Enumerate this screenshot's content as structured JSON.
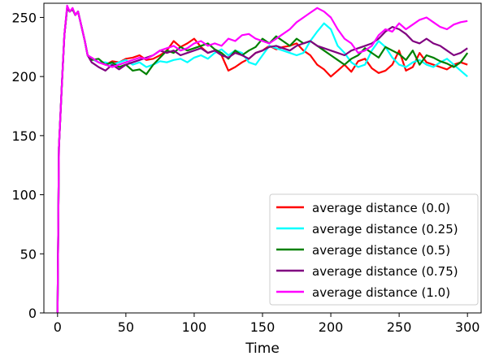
{
  "chart_data": {
    "type": "line",
    "title": "",
    "xlabel": "Time",
    "ylabel": "",
    "xlim": [
      -10,
      310
    ],
    "ylim": [
      0,
      262
    ],
    "xticks": [
      0,
      50,
      100,
      150,
      200,
      250,
      300
    ],
    "yticks": [
      0,
      50,
      100,
      150,
      200,
      250
    ],
    "grid": false,
    "legend_position": "lower-right",
    "series": [
      {
        "name": "average distance (0.0)",
        "color": "#ff0000",
        "x": [
          0,
          1,
          3,
          5,
          7,
          9,
          11,
          13,
          15,
          17,
          20,
          22,
          25,
          30,
          35,
          40,
          45,
          50,
          55,
          60,
          65,
          70,
          75,
          80,
          85,
          90,
          95,
          100,
          105,
          110,
          115,
          120,
          125,
          130,
          135,
          140,
          145,
          150,
          155,
          160,
          165,
          170,
          175,
          180,
          185,
          190,
          195,
          200,
          205,
          210,
          215,
          220,
          225,
          230,
          235,
          240,
          245,
          250,
          255,
          260,
          265,
          270,
          275,
          280,
          285,
          290,
          295,
          300
        ],
        "y": [
          0,
          140,
          190,
          235,
          258,
          255,
          257,
          252,
          255,
          245,
          230,
          218,
          215,
          212,
          210,
          213,
          212,
          215,
          216,
          218,
          214,
          215,
          218,
          222,
          230,
          225,
          228,
          232,
          225,
          220,
          222,
          218,
          205,
          208,
          212,
          215,
          220,
          222,
          226,
          223,
          225,
          226,
          228,
          222,
          218,
          210,
          206,
          200,
          205,
          210,
          204,
          213,
          215,
          207,
          203,
          205,
          210,
          222,
          205,
          208,
          220,
          212,
          210,
          208,
          206,
          210,
          212,
          210
        ]
      },
      {
        "name": "average distance (0.25)",
        "color": "#00ffff",
        "x": [
          0,
          1,
          3,
          5,
          7,
          9,
          11,
          13,
          15,
          17,
          20,
          22,
          25,
          30,
          35,
          40,
          45,
          50,
          55,
          60,
          65,
          70,
          75,
          80,
          85,
          90,
          95,
          100,
          105,
          110,
          115,
          120,
          125,
          130,
          135,
          140,
          145,
          150,
          155,
          160,
          165,
          170,
          175,
          180,
          185,
          190,
          195,
          200,
          205,
          210,
          215,
          220,
          225,
          230,
          235,
          240,
          245,
          250,
          255,
          260,
          265,
          270,
          275,
          280,
          285,
          290,
          295,
          300
        ],
        "y": [
          0,
          140,
          190,
          235,
          258,
          255,
          257,
          252,
          255,
          245,
          230,
          218,
          215,
          212,
          212,
          210,
          212,
          214,
          210,
          212,
          208,
          210,
          213,
          212,
          214,
          215,
          212,
          216,
          218,
          215,
          220,
          223,
          218,
          222,
          220,
          212,
          210,
          218,
          226,
          224,
          222,
          220,
          218,
          220,
          230,
          238,
          245,
          240,
          226,
          220,
          212,
          208,
          210,
          222,
          230,
          225,
          216,
          210,
          208,
          212,
          214,
          210,
          208,
          212,
          215,
          210,
          205,
          200
        ]
      },
      {
        "name": "average distance (0.5)",
        "color": "#008000",
        "x": [
          0,
          1,
          3,
          5,
          7,
          9,
          11,
          13,
          15,
          17,
          20,
          22,
          25,
          30,
          35,
          40,
          45,
          50,
          55,
          60,
          65,
          70,
          75,
          80,
          85,
          90,
          95,
          100,
          105,
          110,
          115,
          120,
          125,
          130,
          135,
          140,
          145,
          150,
          155,
          160,
          165,
          170,
          175,
          180,
          185,
          190,
          195,
          200,
          205,
          210,
          215,
          220,
          225,
          230,
          235,
          240,
          245,
          250,
          255,
          260,
          265,
          270,
          275,
          280,
          285,
          290,
          295,
          300
        ],
        "y": [
          0,
          140,
          190,
          235,
          258,
          255,
          257,
          252,
          255,
          245,
          230,
          218,
          214,
          215,
          210,
          212,
          208,
          210,
          205,
          206,
          202,
          210,
          216,
          222,
          220,
          225,
          222,
          224,
          226,
          228,
          223,
          220,
          215,
          222,
          218,
          222,
          225,
          232,
          228,
          234,
          230,
          226,
          232,
          228,
          230,
          226,
          222,
          218,
          214,
          210,
          215,
          218,
          224,
          220,
          216,
          225,
          222,
          219,
          214,
          222,
          210,
          218,
          216,
          213,
          211,
          208,
          212,
          220
        ]
      },
      {
        "name": "average distance (0.75)",
        "color": "#800080",
        "x": [
          0,
          1,
          3,
          5,
          7,
          9,
          11,
          13,
          15,
          17,
          20,
          22,
          25,
          30,
          35,
          40,
          45,
          50,
          55,
          60,
          65,
          70,
          75,
          80,
          85,
          90,
          95,
          100,
          105,
          110,
          115,
          120,
          125,
          130,
          135,
          140,
          145,
          150,
          155,
          160,
          165,
          170,
          175,
          180,
          185,
          190,
          195,
          200,
          205,
          210,
          215,
          220,
          225,
          230,
          235,
          240,
          245,
          250,
          255,
          260,
          265,
          270,
          275,
          280,
          285,
          290,
          295,
          300
        ],
        "y": [
          0,
          140,
          190,
          235,
          258,
          255,
          257,
          252,
          255,
          245,
          230,
          218,
          212,
          208,
          205,
          210,
          206,
          210,
          212,
          214,
          216,
          218,
          222,
          220,
          222,
          218,
          220,
          222,
          224,
          220,
          222,
          218,
          216,
          220,
          218,
          215,
          220,
          222,
          225,
          226,
          224,
          222,
          226,
          228,
          230,
          226,
          224,
          222,
          220,
          218,
          222,
          224,
          226,
          228,
          232,
          238,
          242,
          240,
          236,
          230,
          228,
          232,
          228,
          226,
          222,
          218,
          220,
          224
        ]
      },
      {
        "name": "average distance (1.0)",
        "color": "#ff00ff",
        "x": [
          0,
          1,
          3,
          5,
          7,
          9,
          11,
          13,
          15,
          17,
          20,
          22,
          25,
          30,
          35,
          40,
          45,
          50,
          55,
          60,
          65,
          70,
          75,
          80,
          85,
          90,
          95,
          100,
          105,
          110,
          115,
          120,
          125,
          130,
          135,
          140,
          145,
          150,
          155,
          160,
          165,
          170,
          175,
          180,
          185,
          190,
          195,
          200,
          205,
          210,
          215,
          220,
          225,
          230,
          235,
          240,
          245,
          250,
          255,
          260,
          265,
          270,
          275,
          280,
          285,
          290,
          295,
          300
        ],
        "y": [
          0,
          140,
          190,
          235,
          260,
          255,
          258,
          252,
          255,
          245,
          230,
          218,
          216,
          212,
          210,
          208,
          210,
          212,
          214,
          216,
          215,
          218,
          222,
          224,
          226,
          222,
          224,
          228,
          230,
          226,
          228,
          226,
          232,
          230,
          235,
          236,
          232,
          230,
          228,
          232,
          236,
          240,
          246,
          250,
          254,
          258,
          255,
          250,
          240,
          232,
          228,
          220,
          222,
          226,
          235,
          240,
          238,
          245,
          240,
          244,
          248,
          250,
          246,
          242,
          240,
          244,
          246,
          247
        ]
      }
    ]
  }
}
